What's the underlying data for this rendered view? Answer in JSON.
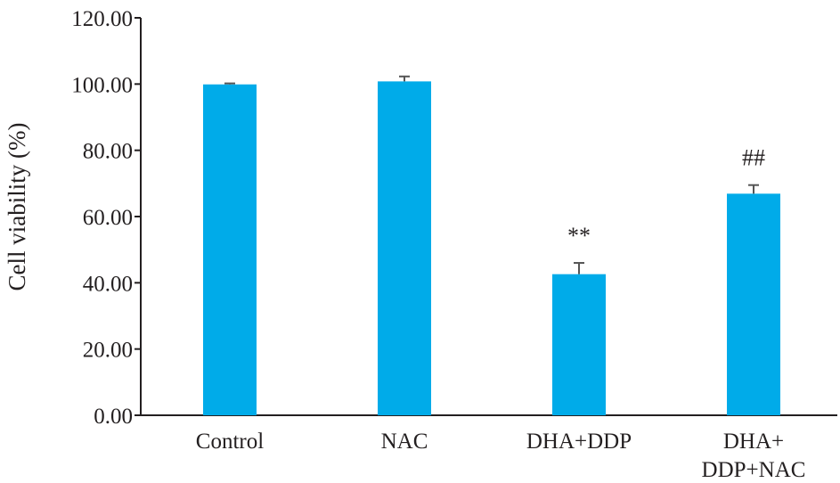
{
  "colors": {
    "bar": "#00abe9",
    "axis": "#231f20",
    "error_bar": "#555555"
  },
  "chart_data": {
    "type": "bar",
    "ylabel": "Cell viability (%)",
    "xlabel": "",
    "ylim": [
      0,
      120
    ],
    "yticks": [
      0,
      20,
      40,
      60,
      80,
      100,
      120
    ],
    "ytick_labels": [
      "0.00",
      "20.00",
      "40.00",
      "60.00",
      "80.00",
      "100.00",
      "120.00"
    ],
    "grid": false,
    "categories": [
      {
        "lines": [
          "Control"
        ]
      },
      {
        "lines": [
          "NAC"
        ]
      },
      {
        "lines": [
          "DHA+DDP"
        ]
      },
      {
        "lines": [
          "DHA+",
          "DDP+NAC"
        ]
      }
    ],
    "values": [
      99.9,
      100.8,
      42.6,
      66.9
    ],
    "errors": [
      0.3,
      1.5,
      3.4,
      2.6
    ],
    "annotations": [
      "",
      "",
      "**",
      "##"
    ]
  }
}
